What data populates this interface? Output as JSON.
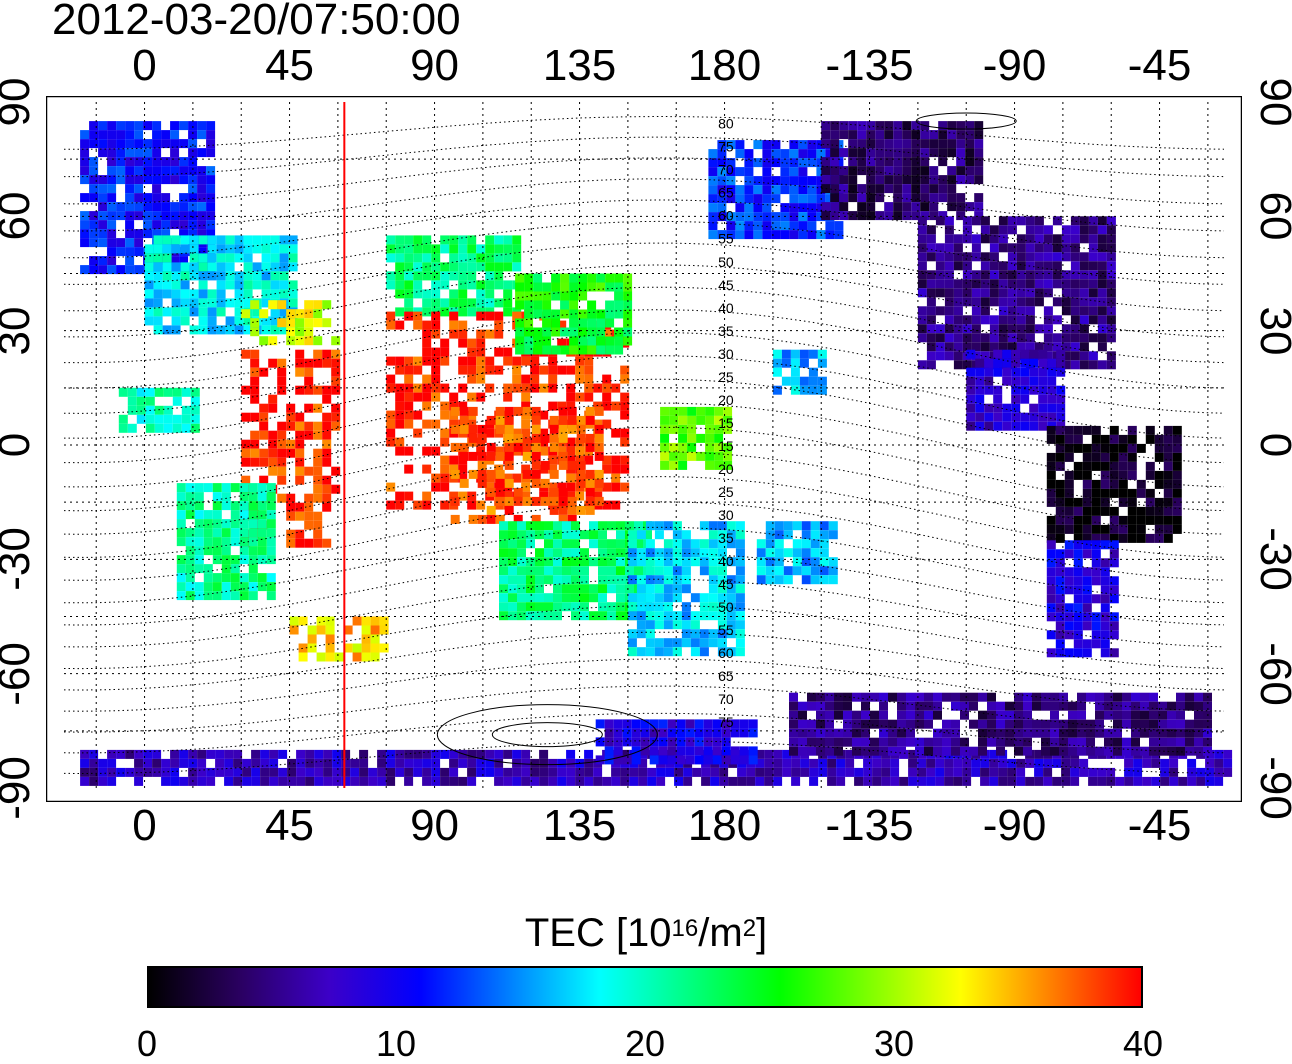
{
  "title": "2012-03-20/07:50:00",
  "lon_ticks": [
    "0",
    "45",
    "90",
    "135",
    "180",
    "-135",
    "-90",
    "-45"
  ],
  "lat_ticks": [
    "90",
    "60",
    "30",
    "0",
    "-30",
    "-60",
    "-90"
  ],
  "maglat_labels": [
    "80",
    "75",
    "70",
    "65",
    "60",
    "55",
    "50",
    "45",
    "40",
    "35",
    "30",
    "25",
    "20",
    "15",
    "15",
    "20",
    "25",
    "30",
    "35",
    "40",
    "45",
    "50",
    "55",
    "60",
    "65",
    "70",
    "75"
  ],
  "colorbar": {
    "label_prefix": "TEC  [10",
    "label_exp": "16",
    "label_unit": "/m",
    "label_exp2": "2",
    "label_suffix": "]",
    "ticks": [
      "0",
      "10",
      "20",
      "30",
      "40"
    ],
    "min": 0,
    "max": 40,
    "colors": [
      "#000000",
      "#2a0060",
      "#3c00c8",
      "#0000ff",
      "#0080ff",
      "#00ffff",
      "#00ff80",
      "#00ff00",
      "#80ff00",
      "#ffff00",
      "#ff8000",
      "#ff0000"
    ]
  },
  "map_data": {
    "projection": "equirectangular",
    "lon_range": [
      -25,
      335
    ],
    "lat_range": [
      -90,
      90
    ],
    "grid_lon_step": 15,
    "grid_lat_step": 15,
    "red_meridian_lon": 62,
    "regions": [
      {
        "lon": [
          -20,
          20
        ],
        "lat": [
          45,
          85
        ],
        "tec": 11
      },
      {
        "lon": [
          0,
          45
        ],
        "lat": [
          30,
          55
        ],
        "tec": 18
      },
      {
        "lon": [
          30,
          60
        ],
        "lat": [
          28,
          38
        ],
        "tec": 32
      },
      {
        "lon": [
          30,
          60
        ],
        "lat": [
          -25,
          25
        ],
        "tec": 39
      },
      {
        "lon": [
          10,
          40
        ],
        "lat": [
          -40,
          -10
        ],
        "tec": 21
      },
      {
        "lon": [
          -8,
          15
        ],
        "lat": [
          5,
          15
        ],
        "tec": 20
      },
      {
        "lon": [
          75,
          115
        ],
        "lat": [
          35,
          55
        ],
        "tec": 22
      },
      {
        "lon": [
          75,
          150
        ],
        "lat": [
          -15,
          35
        ],
        "tec": 39
      },
      {
        "lon": [
          95,
          140
        ],
        "lat": [
          -20,
          10
        ],
        "tec": 38
      },
      {
        "lon": [
          115,
          150
        ],
        "lat": [
          25,
          45
        ],
        "tec": 25
      },
      {
        "lon": [
          110,
          155
        ],
        "lat": [
          -45,
          -20
        ],
        "tec": 22
      },
      {
        "lon": [
          150,
          185
        ],
        "lat": [
          -55,
          -20
        ],
        "tec": 17
      },
      {
        "lon": [
          160,
          180
        ],
        "lat": [
          -5,
          10
        ],
        "tec": 28
      },
      {
        "lon": [
          175,
          215
        ],
        "lat": [
          55,
          80
        ],
        "tec": 12
      },
      {
        "lon": [
          210,
          260
        ],
        "lat": [
          60,
          85
        ],
        "tec": 4
      },
      {
        "lon": [
          240,
          300
        ],
        "lat": [
          20,
          60
        ],
        "tec": 5
      },
      {
        "lon": [
          255,
          285
        ],
        "lat": [
          5,
          25
        ],
        "tec": 8
      },
      {
        "lon": [
          280,
          320
        ],
        "lat": [
          -25,
          5
        ],
        "tec": 1
      },
      {
        "lon": [
          280,
          300
        ],
        "lat": [
          -55,
          -25
        ],
        "tec": 9
      },
      {
        "lon": [
          -20,
          335
        ],
        "lat": [
          -88,
          -80
        ],
        "tec": 7
      },
      {
        "lon": [
          200,
          330
        ],
        "lat": [
          -80,
          -65
        ],
        "tec": 5
      },
      {
        "lon": [
          140,
          190
        ],
        "lat": [
          -82,
          -72
        ],
        "tec": 9
      },
      {
        "lon": [
          45,
          75
        ],
        "lat": [
          -55,
          -45
        ],
        "tec": 34
      },
      {
        "lon": [
          190,
          215
        ],
        "lat": [
          -35,
          -20
        ],
        "tec": 16
      },
      {
        "lon": [
          195,
          210
        ],
        "lat": [
          15,
          25
        ],
        "tec": 16
      }
    ]
  }
}
